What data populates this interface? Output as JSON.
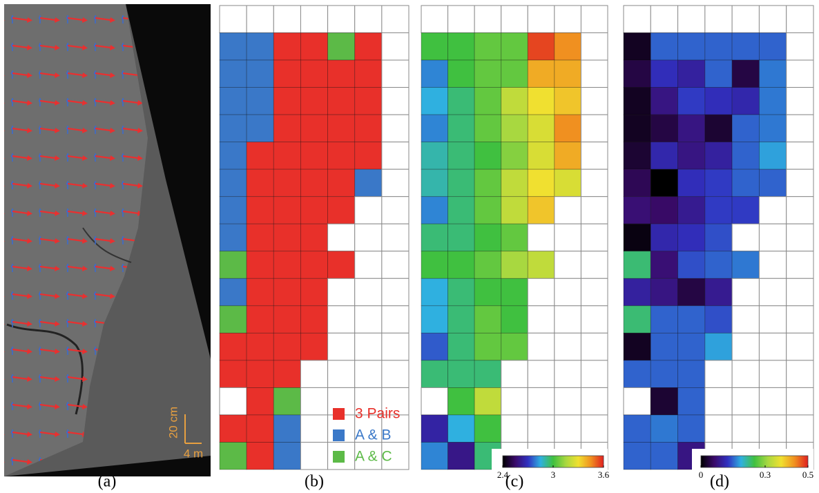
{
  "panel_a": {
    "label": "(a)",
    "scale_y": "20 cm",
    "scale_x": "4 m"
  },
  "chart_data": [
    {
      "type": "category-grid",
      "label": "(b)",
      "categories": [
        "3 Pairs",
        "A & B",
        "A & C"
      ],
      "colors": [
        "#e8302a",
        "#3a78c8",
        "#5cba47"
      ],
      "cells": [
        [
          null,
          null,
          null,
          null,
          null,
          null,
          null
        ],
        [
          1,
          1,
          0,
          0,
          2,
          0,
          null
        ],
        [
          1,
          1,
          0,
          0,
          0,
          0,
          null
        ],
        [
          1,
          1,
          0,
          0,
          0,
          0,
          null
        ],
        [
          1,
          1,
          0,
          0,
          0,
          0,
          null
        ],
        [
          1,
          0,
          0,
          0,
          0,
          0,
          null
        ],
        [
          1,
          0,
          0,
          0,
          0,
          1,
          null
        ],
        [
          1,
          0,
          0,
          0,
          0,
          null,
          null
        ],
        [
          1,
          0,
          0,
          0,
          null,
          null,
          null
        ],
        [
          2,
          0,
          0,
          0,
          0,
          null,
          null
        ],
        [
          1,
          0,
          0,
          0,
          null,
          null,
          null
        ],
        [
          2,
          0,
          0,
          0,
          null,
          null,
          null
        ],
        [
          0,
          0,
          0,
          0,
          null,
          null,
          null
        ],
        [
          0,
          0,
          0,
          null,
          null,
          null,
          null
        ],
        [
          null,
          0,
          2,
          null,
          null,
          null,
          null
        ],
        [
          0,
          0,
          1,
          null,
          null,
          null,
          null
        ],
        [
          2,
          0,
          1,
          null,
          null,
          null,
          null
        ]
      ]
    },
    {
      "type": "heatmap",
      "label": "(c)",
      "zlim": [
        2.4,
        3.6
      ],
      "zticks": [
        2.4,
        3,
        3.6
      ],
      "colormap": [
        "#000000",
        "#3a0a6a",
        "#3030c0",
        "#2fb0e0",
        "#40c040",
        "#a8d840",
        "#f0e030",
        "#f09020",
        "#e02020"
      ],
      "cells": [
        [
          null,
          null,
          null,
          null,
          null,
          null,
          null
        ],
        [
          3.0,
          3.0,
          3.05,
          3.05,
          3.55,
          3.45,
          null
        ],
        [
          2.8,
          3.0,
          3.05,
          3.05,
          3.4,
          3.4,
          null
        ],
        [
          2.85,
          2.95,
          3.05,
          3.2,
          3.3,
          3.35,
          null
        ],
        [
          2.8,
          2.95,
          3.05,
          3.15,
          3.25,
          3.45,
          null
        ],
        [
          2.9,
          2.95,
          3.0,
          3.1,
          3.25,
          3.4,
          null
        ],
        [
          2.9,
          2.95,
          3.05,
          3.2,
          3.3,
          3.25,
          null
        ],
        [
          2.8,
          2.95,
          3.05,
          3.2,
          3.35,
          null,
          null
        ],
        [
          2.95,
          2.95,
          3.0,
          3.05,
          null,
          null,
          null
        ],
        [
          3.0,
          3.0,
          3.05,
          3.15,
          3.2,
          null,
          null
        ],
        [
          2.85,
          2.95,
          3.0,
          3.0,
          null,
          null,
          null
        ],
        [
          2.85,
          2.95,
          3.05,
          3.0,
          null,
          null,
          null
        ],
        [
          2.75,
          2.95,
          3.05,
          3.05,
          null,
          null,
          null
        ],
        [
          2.95,
          2.95,
          2.95,
          null,
          null,
          null,
          null
        ],
        [
          null,
          3.0,
          3.2,
          null,
          null,
          null,
          null
        ],
        [
          2.65,
          2.85,
          3.0,
          null,
          null,
          null,
          null
        ],
        [
          2.8,
          2.6,
          2.95,
          null,
          null,
          null,
          null
        ]
      ]
    },
    {
      "type": "heatmap",
      "label": "(d)",
      "zlim": [
        0,
        0.5
      ],
      "zticks": [
        0,
        0.3,
        0.5
      ],
      "colormap": [
        "#000000",
        "#3a0a6a",
        "#3030c0",
        "#2fb0e0",
        "#40c040",
        "#a8d840",
        "#f0e030",
        "#f09020",
        "#e02020"
      ],
      "cells": [
        [
          null,
          null,
          null,
          null,
          null,
          null,
          null
        ],
        [
          0.02,
          0.15,
          0.15,
          0.15,
          0.15,
          0.15,
          null
        ],
        [
          0.04,
          0.12,
          0.1,
          0.15,
          0.04,
          0.16,
          null
        ],
        [
          0.02,
          0.08,
          0.13,
          0.12,
          0.11,
          0.16,
          null
        ],
        [
          0.02,
          0.04,
          0.08,
          0.03,
          0.15,
          0.16,
          null
        ],
        [
          0.03,
          0.11,
          0.08,
          0.1,
          0.15,
          0.18,
          null
        ],
        [
          0.05,
          0.0,
          0.12,
          0.13,
          0.15,
          0.15,
          null
        ],
        [
          0.07,
          0.06,
          0.09,
          0.13,
          0.13,
          null,
          null
        ],
        [
          0.01,
          0.11,
          0.12,
          0.14,
          null,
          null,
          null
        ],
        [
          0.23,
          0.07,
          0.14,
          0.15,
          0.16,
          null,
          null
        ],
        [
          0.1,
          0.08,
          0.04,
          0.09,
          null,
          null,
          null
        ],
        [
          0.23,
          0.15,
          0.15,
          0.14,
          null,
          null,
          null
        ],
        [
          0.02,
          0.15,
          0.15,
          0.18,
          null,
          null,
          null
        ],
        [
          0.15,
          0.15,
          0.15,
          null,
          null,
          null,
          null
        ],
        [
          null,
          0.03,
          0.15,
          null,
          null,
          null,
          null
        ],
        [
          0.15,
          0.16,
          0.15,
          null,
          null,
          null,
          null
        ],
        [
          0.15,
          0.15,
          0.08,
          null,
          null,
          null,
          null
        ]
      ]
    }
  ]
}
